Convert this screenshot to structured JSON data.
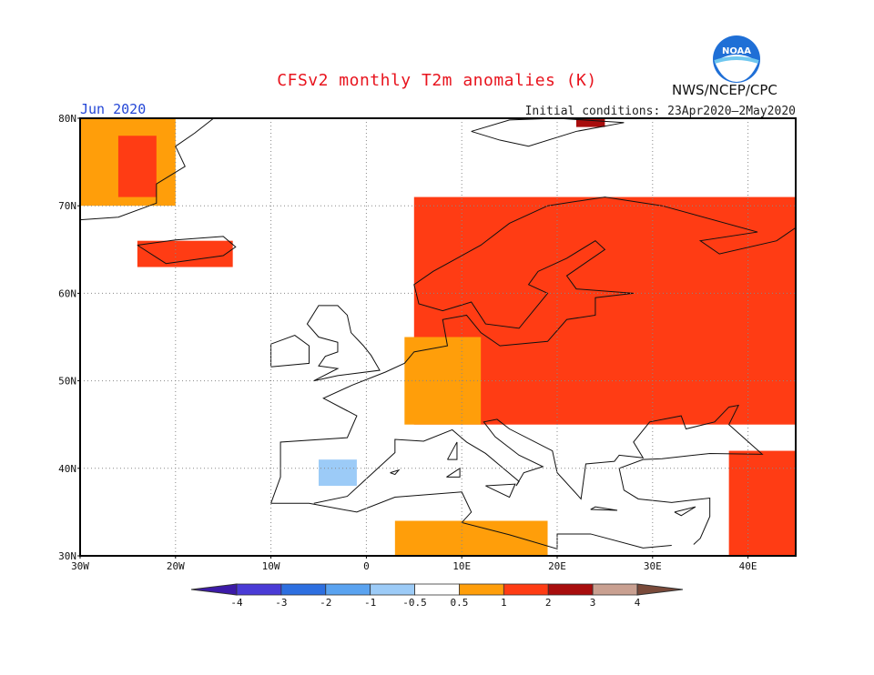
{
  "header": {
    "title": "CFSv2 monthly T2m anomalies (K)",
    "month": "Jun 2020",
    "initial_conditions": "Initial conditions: 23Apr2020–2May2020",
    "agency": "NWS/NCEP/CPC",
    "logo_text": "NOAA"
  },
  "map": {
    "lat_range": [
      30,
      80
    ],
    "lon_range": [
      -30,
      45
    ],
    "lat_labels": [
      "80N",
      "70N",
      "60N",
      "50N",
      "40N",
      "30N"
    ],
    "lon_labels": [
      "30W",
      "20W",
      "10W",
      "0",
      "10E",
      "20E",
      "30E",
      "40E"
    ]
  },
  "legend": {
    "labels": [
      "-4",
      "-3",
      "-2",
      "-1",
      "-0.5",
      "0.5",
      "1",
      "2",
      "3",
      "4"
    ],
    "colors": [
      "#3c1aa8",
      "#4a3bd6",
      "#2d6fe0",
      "#5aa3f0",
      "#9ccbf7",
      "#ffffff",
      "#ff9e0a",
      "#ff3c14",
      "#a80d0d",
      "#c9a091",
      "#7a4a3a"
    ]
  },
  "anomaly_regions": [
    {
      "name": "greenland",
      "level": "0.5-1",
      "lon": [
        -30,
        -20
      ],
      "lat": [
        70,
        80
      ]
    },
    {
      "name": "greenland-warm",
      "level": "1-2",
      "lon": [
        -26,
        -22
      ],
      "lat": [
        71,
        78
      ]
    },
    {
      "name": "iceland",
      "level": "1-2",
      "lon": [
        -24,
        -14
      ],
      "lat": [
        63,
        66
      ]
    },
    {
      "name": "scandinavia-russia",
      "level": "1-2",
      "lon": [
        5,
        45
      ],
      "lat": [
        45,
        71
      ]
    },
    {
      "name": "western-europe",
      "level": "0.5-1",
      "lon": [
        4,
        12
      ],
      "lat": [
        45,
        55
      ]
    },
    {
      "name": "north-africa",
      "level": "0.5-1",
      "lon": [
        3,
        19
      ],
      "lat": [
        30,
        34
      ]
    },
    {
      "name": "middle-east",
      "level": "1-2",
      "lon": [
        38,
        45
      ],
      "lat": [
        30,
        42
      ]
    },
    {
      "name": "iberia-cool",
      "level": "-1--0.5",
      "lon": [
        -5,
        -1
      ],
      "lat": [
        38,
        41
      ]
    },
    {
      "name": "svalbard",
      "level": "2-3",
      "lon": [
        22,
        25
      ],
      "lat": [
        79,
        80
      ]
    }
  ]
}
